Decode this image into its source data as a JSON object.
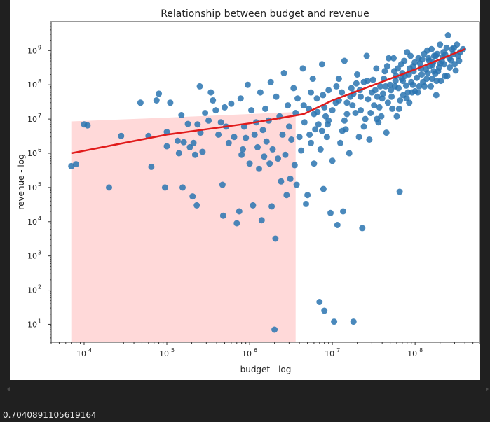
{
  "output": {
    "printed_value": "0.7040891105619164"
  },
  "colors": {
    "page_bg": "#202020",
    "plot_bg": "#ffffff",
    "points": "#2a74b0",
    "regression_line": "#e11b1b",
    "confidence_band": "#ffd9d9"
  },
  "chart_data": {
    "type": "scatter",
    "title": "Relationship between budget and revenue",
    "xlabel": "budget - log",
    "ylabel": "revenue - log",
    "xscale": "log",
    "yscale": "log",
    "xlim": [
      4000,
      600000000
    ],
    "ylim": [
      3,
      7000000000
    ],
    "x_ticks": [
      {
        "value": 10000,
        "base": "10",
        "exp": "4"
      },
      {
        "value": 100000,
        "base": "10",
        "exp": "5"
      },
      {
        "value": 1000000,
        "base": "10",
        "exp": "6"
      },
      {
        "value": 10000000,
        "base": "10",
        "exp": "7"
      },
      {
        "value": 100000000,
        "base": "10",
        "exp": "8"
      }
    ],
    "y_ticks": [
      {
        "value": 10,
        "base": "10",
        "exp": "1"
      },
      {
        "value": 100,
        "base": "10",
        "exp": "2"
      },
      {
        "value": 1000,
        "base": "10",
        "exp": "3"
      },
      {
        "value": 10000,
        "base": "10",
        "exp": "4"
      },
      {
        "value": 100000,
        "base": "10",
        "exp": "5"
      },
      {
        "value": 1000000,
        "base": "10",
        "exp": "6"
      },
      {
        "value": 10000000,
        "base": "10",
        "exp": "7"
      },
      {
        "value": 100000000,
        "base": "10",
        "exp": "8"
      },
      {
        "value": 1000000000,
        "base": "10",
        "exp": "9"
      }
    ],
    "grid": false,
    "points": [
      [
        7000,
        420000
      ],
      [
        8000,
        480000
      ],
      [
        10000,
        7000000
      ],
      [
        11000,
        6500000
      ],
      [
        20000,
        100000
      ],
      [
        28000,
        3200000
      ],
      [
        48000,
        30000000
      ],
      [
        60000,
        3200000
      ],
      [
        65000,
        400000
      ],
      [
        75000,
        35000000
      ],
      [
        80000,
        55000000
      ],
      [
        95000,
        100000
      ],
      [
        100000,
        4200000
      ],
      [
        100000,
        1600000
      ],
      [
        110000,
        30000000
      ],
      [
        135000,
        2300000
      ],
      [
        140000,
        1000000
      ],
      [
        150000,
        13000000
      ],
      [
        155000,
        100000
      ],
      [
        160000,
        2100000
      ],
      [
        180000,
        7200000
      ],
      [
        190000,
        1500000
      ],
      [
        205000,
        55000
      ],
      [
        210000,
        2000000
      ],
      [
        220000,
        900000
      ],
      [
        230000,
        30000
      ],
      [
        235000,
        7000000
      ],
      [
        250000,
        90000000
      ],
      [
        255000,
        4000000
      ],
      [
        270000,
        1100000
      ],
      [
        290000,
        15000000
      ],
      [
        320000,
        9000000
      ],
      [
        340000,
        60000000
      ],
      [
        360000,
        35000000
      ],
      [
        390000,
        18000000
      ],
      [
        420000,
        3500000
      ],
      [
        450000,
        8000000
      ],
      [
        470000,
        120000
      ],
      [
        480000,
        15000
      ],
      [
        500000,
        22000000
      ],
      [
        520000,
        6000000
      ],
      [
        560000,
        2000000
      ],
      [
        600000,
        28000000
      ],
      [
        650000,
        3000000
      ],
      [
        700000,
        9000
      ],
      [
        750000,
        20000
      ],
      [
        780000,
        40000000
      ],
      [
        800000,
        900000
      ],
      [
        830000,
        1300000
      ],
      [
        860000,
        6000000
      ],
      [
        900000,
        2800000
      ],
      [
        950000,
        100000000
      ],
      [
        1000000,
        500000
      ],
      [
        1050000,
        18000000
      ],
      [
        1100000,
        30000
      ],
      [
        1150000,
        3500000
      ],
      [
        1200000,
        8000000
      ],
      [
        1250000,
        1500000
      ],
      [
        1300000,
        350000
      ],
      [
        1350000,
        60000000
      ],
      [
        1400000,
        11000
      ],
      [
        1450000,
        4800000
      ],
      [
        1500000,
        800000
      ],
      [
        1550000,
        20000000
      ],
      [
        1600000,
        2200000
      ],
      [
        1700000,
        9000000
      ],
      [
        1750000,
        500000
      ],
      [
        1800000,
        120000000
      ],
      [
        1850000,
        28000
      ],
      [
        1900000,
        1300000
      ],
      [
        2000000,
        7
      ],
      [
        2050000,
        3200
      ],
      [
        2100000,
        45000000
      ],
      [
        2200000,
        700000
      ],
      [
        2300000,
        12000000
      ],
      [
        2400000,
        150000
      ],
      [
        2500000,
        3500000
      ],
      [
        2600000,
        220000000
      ],
      [
        2700000,
        900000
      ],
      [
        2800000,
        60000
      ],
      [
        2900000,
        25000000
      ],
      [
        3000000,
        6000000
      ],
      [
        3100000,
        180000
      ],
      [
        3200000,
        2500000
      ],
      [
        3400000,
        80000000
      ],
      [
        3500000,
        450000
      ],
      [
        3600000,
        15000000
      ],
      [
        3700000,
        120000
      ],
      [
        3800000,
        40000000
      ],
      [
        4000000,
        3000000
      ],
      [
        4200000,
        1200000
      ],
      [
        4400000,
        300000000
      ],
      [
        4600000,
        8000000
      ],
      [
        4800000,
        33000
      ],
      [
        5000000,
        60000
      ],
      [
        5200000,
        20000000
      ],
      [
        5500000,
        2000000
      ],
      [
        5800000,
        150000000
      ],
      [
        6000000,
        500000
      ],
      [
        6200000,
        5000000
      ],
      [
        6500000,
        40000000
      ],
      [
        6800000,
        7000000
      ],
      [
        7000000,
        45
      ],
      [
        7200000,
        1300000
      ],
      [
        7500000,
        400000000
      ],
      [
        7800000,
        90000
      ],
      [
        8000000,
        25
      ],
      [
        8300000,
        12000000
      ],
      [
        8600000,
        3000000
      ],
      [
        9000000,
        70000000
      ],
      [
        9500000,
        18000
      ],
      [
        10000000,
        600000
      ],
      [
        10500000,
        12
      ],
      [
        11000000,
        30000000
      ],
      [
        11500000,
        8000
      ],
      [
        12000000,
        150000000
      ],
      [
        12500000,
        2000000
      ],
      [
        13000000,
        60000000
      ],
      [
        13500000,
        20000
      ],
      [
        14000000,
        500000000
      ],
      [
        14500000,
        5000000
      ],
      [
        15000000,
        30000000
      ],
      [
        16000000,
        1000000
      ],
      [
        17000000,
        80000000
      ],
      [
        18000000,
        12
      ],
      [
        19000000,
        15000000
      ],
      [
        20000000,
        200000000
      ],
      [
        21000000,
        3000000
      ],
      [
        22000000,
        45000000
      ],
      [
        23000000,
        6500
      ],
      [
        24000000,
        120000000
      ],
      [
        25000000,
        10000000
      ],
      [
        26000000,
        700000000
      ],
      [
        28000000,
        2500000
      ],
      [
        30000000,
        60000000
      ],
      [
        32000000,
        25000000
      ],
      [
        34000000,
        300000000
      ],
      [
        36000000,
        8000000
      ],
      [
        38000000,
        90000000
      ],
      [
        40000000,
        40000000
      ],
      [
        42000000,
        150000000
      ],
      [
        45000000,
        4000000
      ],
      [
        48000000,
        600000000
      ],
      [
        50000000,
        100000000
      ],
      [
        53000000,
        20000000
      ],
      [
        56000000,
        250000000
      ],
      [
        60000000,
        12000000
      ],
      [
        63000000,
        80000000
      ],
      [
        65000000,
        75000
      ],
      [
        68000000,
        400000000
      ],
      [
        72000000,
        50000000
      ],
      [
        75000000,
        180000000
      ],
      [
        80000000,
        900000000
      ],
      [
        85000000,
        30000000
      ],
      [
        90000000,
        120000000
      ],
      [
        95000000,
        350000000
      ],
      [
        100000000,
        65000000
      ],
      [
        110000000,
        600000000
      ],
      [
        120000000,
        200000000
      ],
      [
        130000000,
        90000000
      ],
      [
        140000000,
        1000000000
      ],
      [
        150000000,
        350000000
      ],
      [
        160000000,
        150000000
      ],
      [
        170000000,
        700000000
      ],
      [
        180000000,
        50000000
      ],
      [
        190000000,
        250000000
      ],
      [
        200000000,
        1500000000
      ],
      [
        210000000,
        500000000
      ],
      [
        220000000,
        900000000
      ],
      [
        230000000,
        180000000
      ],
      [
        240000000,
        1200000000
      ],
      [
        250000000,
        2800000000
      ],
      [
        260000000,
        600000000
      ],
      [
        280000000,
        1100000000
      ],
      [
        300000000,
        400000000
      ],
      [
        320000000,
        1500000000
      ],
      [
        350000000,
        900000000
      ],
      [
        380000000,
        1100000000
      ],
      [
        6000000,
        14000000
      ],
      [
        8000000,
        22000000
      ],
      [
        9000000,
        9000000
      ],
      [
        12000000,
        35000000
      ],
      [
        15000000,
        14000000
      ],
      [
        18000000,
        55000000
      ],
      [
        22000000,
        18000000
      ],
      [
        27000000,
        38000000
      ],
      [
        33000000,
        70000000
      ],
      [
        37000000,
        22000000
      ],
      [
        44000000,
        90000000
      ],
      [
        52000000,
        45000000
      ],
      [
        58000000,
        130000000
      ],
      [
        66000000,
        35000000
      ],
      [
        70000000,
        220000000
      ],
      [
        78000000,
        95000000
      ],
      [
        86000000,
        300000000
      ],
      [
        92000000,
        60000000
      ],
      [
        105000000,
        160000000
      ],
      [
        115000000,
        420000000
      ],
      [
        125000000,
        120000000
      ],
      [
        135000000,
        280000000
      ],
      [
        145000000,
        600000000
      ],
      [
        155000000,
        90000000
      ],
      [
        165000000,
        450000000
      ],
      [
        175000000,
        210000000
      ],
      [
        185000000,
        800000000
      ],
      [
        195000000,
        320000000
      ],
      [
        205000000,
        130000000
      ],
      [
        215000000,
        650000000
      ],
      [
        225000000,
        400000000
      ],
      [
        245000000,
        180000000
      ],
      [
        270000000,
        520000000
      ],
      [
        290000000,
        800000000
      ],
      [
        310000000,
        260000000
      ],
      [
        330000000,
        700000000
      ],
      [
        5500000,
        60000000
      ],
      [
        7500000,
        4500000
      ],
      [
        10000000,
        18000000
      ],
      [
        14000000,
        9000000
      ],
      [
        16500000,
        45000000
      ],
      [
        19500000,
        110000000
      ],
      [
        24000000,
        6000000
      ],
      [
        29000000,
        15000000
      ],
      [
        31000000,
        140000000
      ],
      [
        35000000,
        45000000
      ],
      [
        39000000,
        12000000
      ],
      [
        43000000,
        250000000
      ],
      [
        47000000,
        30000000
      ],
      [
        51000000,
        70000000
      ],
      [
        55000000,
        600000000
      ],
      [
        59000000,
        180000000
      ],
      [
        64000000,
        20000000
      ],
      [
        69000000,
        150000000
      ],
      [
        74000000,
        500000000
      ],
      [
        79000000,
        40000000
      ],
      [
        84000000,
        200000000
      ],
      [
        88000000,
        700000000
      ],
      [
        94000000,
        100000000
      ],
      [
        99000000,
        450000000
      ],
      [
        108000000,
        60000000
      ],
      [
        118000000,
        300000000
      ],
      [
        128000000,
        800000000
      ],
      [
        138000000,
        150000000
      ],
      [
        148000000,
        500000000
      ],
      [
        158000000,
        1100000000
      ],
      [
        168000000,
        250000000
      ],
      [
        178000000,
        700000000
      ],
      [
        4500000,
        25000000
      ],
      [
        5300000,
        3500000
      ],
      [
        6600000,
        16000000
      ],
      [
        7700000,
        50000000
      ],
      [
        8800000,
        7000000
      ],
      [
        11200000,
        90000000
      ],
      [
        13200000,
        4500000
      ],
      [
        17500000,
        25000000
      ],
      [
        21500000,
        70000000
      ],
      [
        26500000,
        130000000
      ],
      [
        34500000,
        10000000
      ],
      [
        41000000,
        55000000
      ],
      [
        46000000,
        350000000
      ],
      [
        57000000,
        90000000
      ],
      [
        62000000,
        300000000
      ],
      [
        71000000,
        130000000
      ],
      [
        82000000,
        60000000
      ],
      [
        96000000,
        250000000
      ],
      [
        112000000,
        90000000
      ],
      [
        122000000,
        550000000
      ],
      [
        142000000,
        220000000
      ],
      [
        162000000,
        380000000
      ],
      [
        182000000,
        130000000
      ],
      [
        202000000,
        420000000
      ],
      [
        232000000,
        750000000
      ],
      [
        262000000,
        320000000
      ],
      [
        295000000,
        1200000000
      ],
      [
        340000000,
        500000000
      ]
    ],
    "regression_line": [
      [
        7000,
        1000000
      ],
      [
        100000,
        3500000
      ],
      [
        1000000,
        7500000
      ],
      [
        4500000,
        14000000
      ],
      [
        10000000,
        35000000
      ],
      [
        50000000,
        150000000
      ],
      [
        100000000,
        280000000
      ],
      [
        400000000,
        1100000000
      ]
    ],
    "confidence_band_upper": [
      [
        7000,
        8500000
      ],
      [
        100000,
        11000000
      ],
      [
        1000000,
        14000000
      ],
      [
        3600000,
        16000000
      ]
    ],
    "confidence_band_lower": [
      [
        7000,
        3
      ],
      [
        3600000,
        3
      ]
    ]
  }
}
